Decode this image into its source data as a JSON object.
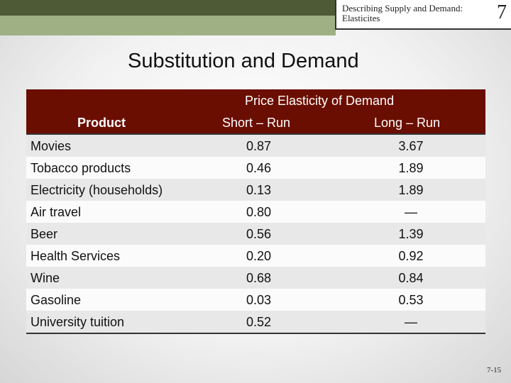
{
  "header": {
    "section": "Describing Supply and Demand: Elasticites",
    "chapter": "7"
  },
  "title": "Substitution and Demand",
  "table": {
    "group_header": "Price Elasticity of Demand",
    "columns": [
      "Product",
      "Short – Run",
      "Long – Run"
    ],
    "rows": [
      [
        "Movies",
        "0.87",
        "3.67"
      ],
      [
        "Tobacco products",
        "0.46",
        "1.89"
      ],
      [
        "Electricity (households)",
        "0.13",
        "1.89"
      ],
      [
        "Air travel",
        "0.80",
        "—"
      ],
      [
        "Beer",
        "0.56",
        "1.39"
      ],
      [
        "Health Services",
        "0.20",
        "0.92"
      ],
      [
        "Wine",
        "0.68",
        "0.84"
      ],
      [
        "Gasoline",
        "0.03",
        "0.53"
      ],
      [
        "University tuition",
        "0.52",
        "—"
      ]
    ]
  },
  "page_number": "7-15"
}
